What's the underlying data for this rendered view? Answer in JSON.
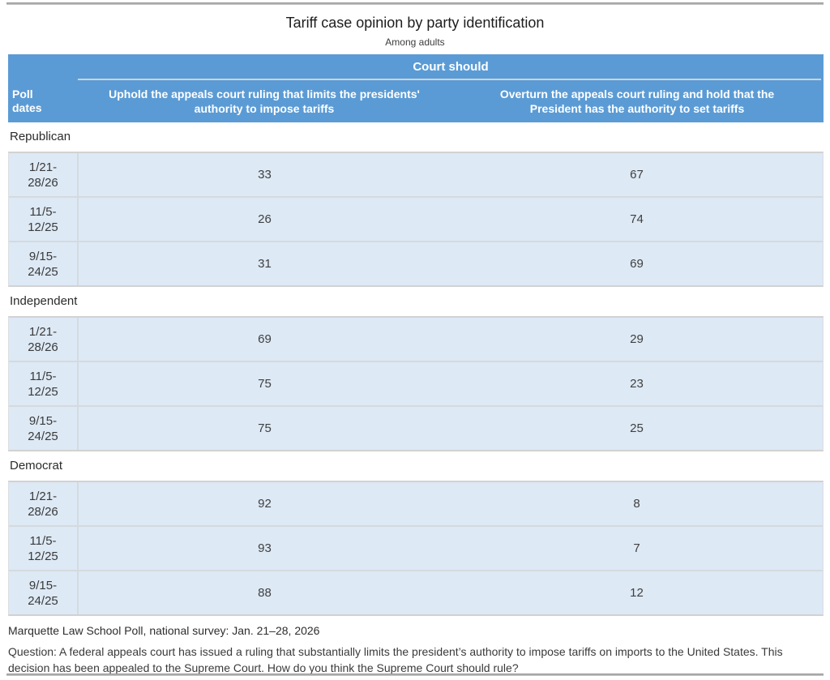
{
  "header": {
    "title": "Tariff case opinion by party identification",
    "subtitle": "Among adults"
  },
  "table": {
    "group_header": "Court should",
    "poll_dates_label": "Poll\ndates",
    "columns": [
      "Uphold the appeals court ruling that limits the presidents' authority to impose tariffs",
      "Overturn the appeals court ruling and hold that the President has the authority to set tariffs"
    ],
    "sections": [
      {
        "label": "Republican",
        "rows": [
          {
            "dates": "1/21-\n28/26",
            "values": [
              33,
              67
            ]
          },
          {
            "dates": "11/5-\n12/25",
            "values": [
              26,
              74
            ]
          },
          {
            "dates": "9/15-\n24/25",
            "values": [
              31,
              69
            ]
          }
        ]
      },
      {
        "label": "Independent",
        "rows": [
          {
            "dates": "1/21-\n28/26",
            "values": [
              69,
              29
            ]
          },
          {
            "dates": "11/5-\n12/25",
            "values": [
              75,
              23
            ]
          },
          {
            "dates": "9/15-\n24/25",
            "values": [
              75,
              25
            ]
          }
        ]
      },
      {
        "label": "Democrat",
        "rows": [
          {
            "dates": "1/21-\n28/26",
            "values": [
              92,
              8
            ]
          },
          {
            "dates": "11/5-\n12/25",
            "values": [
              93,
              7
            ]
          },
          {
            "dates": "9/15-\n24/25",
            "values": [
              88,
              12
            ]
          }
        ]
      }
    ]
  },
  "footer": {
    "source": "Marquette Law School Poll, national survey: Jan. 21–28, 2026",
    "question": "Question: A federal appeals court has issued a ruling that substantially limits the president’s authority to impose tariffs on imports to the United States. This decision has been appealed to the Supreme Court. How do you think the Supreme Court should rule?"
  },
  "colors": {
    "header_blue": "#5b9bd5",
    "row_blue": "#dde9f5",
    "rule_gray": "#a0a0a0"
  },
  "chart_data": {
    "type": "table",
    "title": "Tariff case opinion by party identification",
    "subtitle": "Among adults",
    "group_header": "Court should",
    "columns": [
      "Poll dates",
      "Uphold the appeals court ruling that limits the presidents' authority to impose tariffs",
      "Overturn the appeals court ruling and hold that the President has the authority to set tariffs"
    ],
    "groups": [
      {
        "party": "Republican",
        "rows": [
          [
            "1/21-28/26",
            33,
            67
          ],
          [
            "11/5-12/25",
            26,
            74
          ],
          [
            "9/15-24/25",
            31,
            69
          ]
        ]
      },
      {
        "party": "Independent",
        "rows": [
          [
            "1/21-28/26",
            69,
            29
          ],
          [
            "11/5-12/25",
            75,
            23
          ],
          [
            "9/15-24/25",
            75,
            25
          ]
        ]
      },
      {
        "party": "Democrat",
        "rows": [
          [
            "1/21-28/26",
            92,
            8
          ],
          [
            "11/5-12/25",
            93,
            7
          ],
          [
            "9/15-24/25",
            88,
            12
          ]
        ]
      }
    ],
    "source": "Marquette Law School Poll, national survey: Jan. 21–28, 2026",
    "question": "Question: A federal appeals court has issued a ruling that substantially limits the president’s authority to impose tariffs on imports to the United States. This decision has been appealed to the Supreme Court. How do you think the Supreme Court should rule?"
  }
}
